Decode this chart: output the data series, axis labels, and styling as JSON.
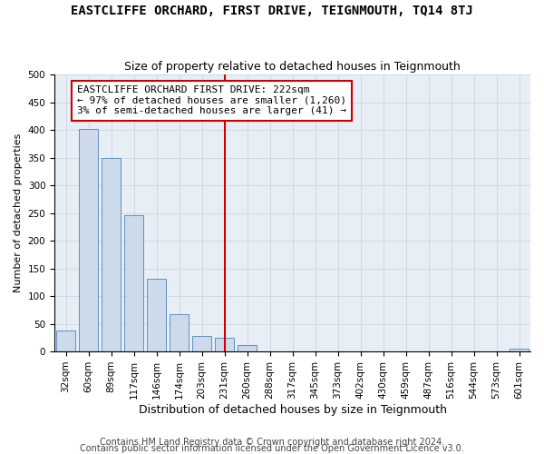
{
  "title": "EASTCLIFFE ORCHARD, FIRST DRIVE, TEIGNMOUTH, TQ14 8TJ",
  "subtitle": "Size of property relative to detached houses in Teignmouth",
  "xlabel": "Distribution of detached houses by size in Teignmouth",
  "ylabel": "Number of detached properties",
  "bar_labels": [
    "32sqm",
    "60sqm",
    "89sqm",
    "117sqm",
    "146sqm",
    "174sqm",
    "203sqm",
    "231sqm",
    "260sqm",
    "288sqm",
    "317sqm",
    "345sqm",
    "373sqm",
    "402sqm",
    "430sqm",
    "459sqm",
    "487sqm",
    "516sqm",
    "544sqm",
    "573sqm",
    "601sqm"
  ],
  "bar_values": [
    38,
    402,
    350,
    246,
    131,
    68,
    28,
    25,
    12,
    0,
    0,
    0,
    0,
    0,
    0,
    0,
    0,
    0,
    0,
    0,
    5
  ],
  "bar_color": "#ccdaeb",
  "bar_edgecolor": "#6090c0",
  "grid_color": "#d0d8e4",
  "vline_color": "#cc0000",
  "annotation_text": "EASTCLIFFE ORCHARD FIRST DRIVE: 222sqm\n← 97% of detached houses are smaller (1,260)\n3% of semi-detached houses are larger (41) →",
  "annotation_box_edgecolor": "#cc0000",
  "footer1": "Contains HM Land Registry data © Crown copyright and database right 2024.",
  "footer2": "Contains public sector information licensed under the Open Government Licence v3.0.",
  "ylim": [
    0,
    500
  ],
  "yticks": [
    0,
    50,
    100,
    150,
    200,
    250,
    300,
    350,
    400,
    450,
    500
  ],
  "title_fontsize": 10,
  "subtitle_fontsize": 9,
  "annotation_fontsize": 8,
  "tick_fontsize": 7.5,
  "xlabel_fontsize": 9,
  "ylabel_fontsize": 8,
  "footer_fontsize": 7,
  "bg_color": "#e8eef5"
}
